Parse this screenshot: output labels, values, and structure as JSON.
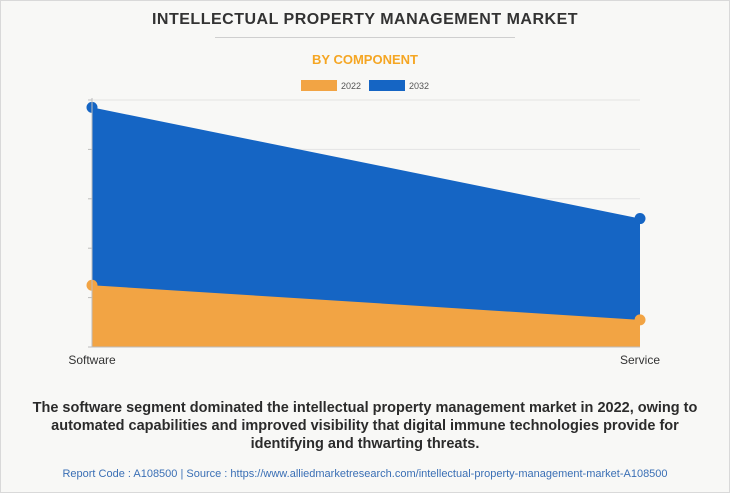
{
  "title": "INTELLECTUAL PROPERTY MANAGEMENT MARKET",
  "subtitle": "BY COMPONENT",
  "colors": {
    "subtitle": "#f5a623",
    "series_2022": "#f2a444",
    "series_2032": "#1565c4",
    "grid": "#e3e3e3",
    "footer": "#3a6fb5"
  },
  "chart_data": {
    "type": "area",
    "categories": [
      "Software",
      "Service"
    ],
    "series": [
      {
        "name": "2022",
        "values": [
          25,
          11
        ]
      },
      {
        "name": "2032",
        "values": [
          97,
          52
        ]
      }
    ],
    "ylim": [
      0,
      100
    ],
    "grid": true,
    "legend": "top-center",
    "stacked": false
  },
  "caption": "The software segment dominated the intellectual property management market in 2022, owing to automated capabilities and improved visibility that digital immune technologies provide for identifying and thwarting threats.",
  "footer": "Report Code : A108500  |  Source : https://www.alliedmarketresearch.com/intellectual-property-management-market-A108500"
}
